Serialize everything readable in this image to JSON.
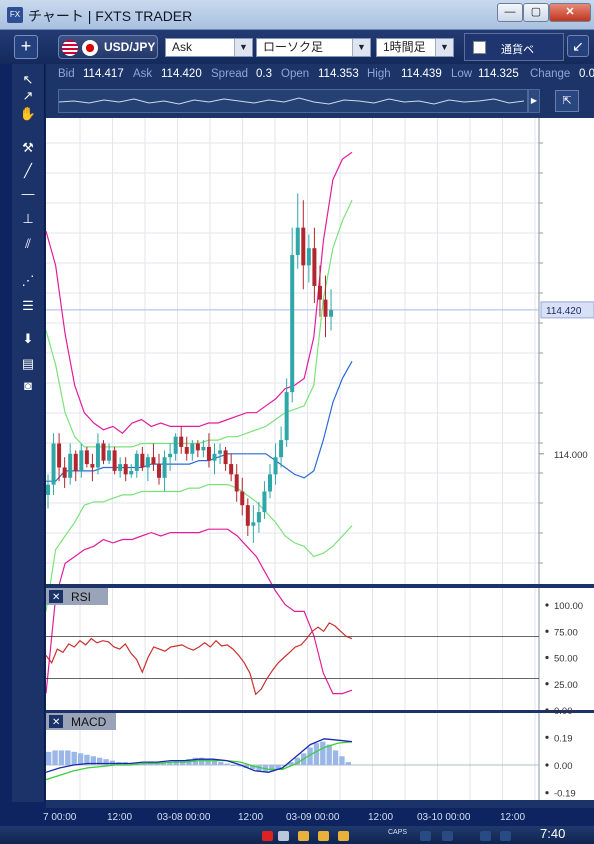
{
  "window": {
    "title": "チャート | FXTS TRADER",
    "min_label": "—",
    "max_label": "▢",
    "close_label": "✕"
  },
  "toolbar": {
    "add_label": "+",
    "pair": "USD/JPY",
    "price_type": "Ask",
    "chart_type": "ローソク足",
    "period": "1時間足",
    "currency_strength": "通貨ベ",
    "popout_label": "↙"
  },
  "quote": {
    "bid_label": "Bid",
    "bid": "114.417",
    "ask_label": "Ask",
    "ask": "114.420",
    "spread_label": "Spread",
    "spread": "0.3",
    "open_label": "Open",
    "open": "114.353",
    "high_label": "High",
    "high": "114.439",
    "low_label": "Low",
    "low": "114.325",
    "change_label": "Change",
    "change": "0.0"
  },
  "tools": [
    {
      "icon": "arrow-select-icon",
      "glyph": "↖"
    },
    {
      "icon": "crosshair-select-icon",
      "glyph": "↗"
    },
    {
      "icon": "hand-pan-icon",
      "glyph": "✋"
    },
    {
      "icon": "hammer-icon",
      "glyph": "⚒"
    },
    {
      "icon": "trendline-icon",
      "glyph": "╱"
    },
    {
      "icon": "horizontal-line-icon",
      "glyph": "—"
    },
    {
      "icon": "vertical-line-icon",
      "glyph": "⊥"
    },
    {
      "icon": "channel-icon",
      "glyph": "⫽"
    },
    {
      "icon": "fibonacci-fan-icon",
      "glyph": "⋰"
    },
    {
      "icon": "fibonacci-levels-icon",
      "glyph": "☰"
    },
    {
      "icon": "download-icon",
      "glyph": "⬇"
    },
    {
      "icon": "list-icon",
      "glyph": "▤"
    },
    {
      "icon": "camera-icon",
      "glyph": "◙"
    }
  ],
  "chart_data": [
    {
      "type": "candlestick",
      "title": "",
      "current_price_label": "114.420",
      "y_tick_labels": [
        "114.000"
      ],
      "x_tick_labels": [
        "7 00:00",
        "12:00",
        "03-08 00:00",
        "12:00",
        "03-09 00:00",
        "12:00",
        "03-10 00:00",
        "12:00"
      ],
      "ylim": [
        113.62,
        114.98
      ],
      "current_price": 114.42,
      "ohlc": [
        [
          113.88,
          113.94,
          113.84,
          113.91
        ],
        [
          113.91,
          114.06,
          113.88,
          114.03
        ],
        [
          114.03,
          114.06,
          113.92,
          113.96
        ],
        [
          113.96,
          113.99,
          113.9,
          113.93
        ],
        [
          113.93,
          114.03,
          113.91,
          114.0
        ],
        [
          114.0,
          114.01,
          113.92,
          113.95
        ],
        [
          113.95,
          114.03,
          113.93,
          114.01
        ],
        [
          114.01,
          114.02,
          113.96,
          113.97
        ],
        [
          113.97,
          114.0,
          113.92,
          113.96
        ],
        [
          113.96,
          114.06,
          113.94,
          114.03
        ],
        [
          114.03,
          114.04,
          113.97,
          113.98
        ],
        [
          113.98,
          114.03,
          113.97,
          114.01
        ],
        [
          114.01,
          114.02,
          113.94,
          113.95
        ],
        [
          113.95,
          113.99,
          113.93,
          113.97
        ],
        [
          113.97,
          113.99,
          113.92,
          113.94
        ],
        [
          113.94,
          113.97,
          113.93,
          113.95
        ],
        [
          113.95,
          114.01,
          113.93,
          114.0
        ],
        [
          114.0,
          114.02,
          113.95,
          113.96
        ],
        [
          113.96,
          114.0,
          113.92,
          113.99
        ],
        [
          113.99,
          114.03,
          113.95,
          113.97
        ],
        [
          113.97,
          114.0,
          113.91,
          113.93
        ],
        [
          113.93,
          114.01,
          113.89,
          113.99
        ],
        [
          113.99,
          114.03,
          113.95,
          114.0
        ],
        [
          114.0,
          114.06,
          113.98,
          114.05
        ],
        [
          114.05,
          114.08,
          114.0,
          114.02
        ],
        [
          114.02,
          114.05,
          113.98,
          114.0
        ],
        [
          114.0,
          114.04,
          113.98,
          114.03
        ],
        [
          114.03,
          114.04,
          113.99,
          114.01
        ],
        [
          114.01,
          114.04,
          113.99,
          114.02
        ],
        [
          114.02,
          114.06,
          113.96,
          113.98
        ],
        [
          113.98,
          114.03,
          113.94,
          114.0
        ],
        [
          114.0,
          114.03,
          113.97,
          114.01
        ],
        [
          114.01,
          114.02,
          113.95,
          113.97
        ],
        [
          113.97,
          114.0,
          113.92,
          113.94
        ],
        [
          113.94,
          113.97,
          113.86,
          113.89
        ],
        [
          113.89,
          113.93,
          113.82,
          113.85
        ],
        [
          113.85,
          113.87,
          113.76,
          113.79
        ],
        [
          113.79,
          113.85,
          113.74,
          113.8
        ],
        [
          113.8,
          113.86,
          113.77,
          113.83
        ],
        [
          113.83,
          113.92,
          113.81,
          113.89
        ],
        [
          113.89,
          113.97,
          113.87,
          113.94
        ],
        [
          113.94,
          114.03,
          113.91,
          113.99
        ],
        [
          113.99,
          114.08,
          113.96,
          114.04
        ],
        [
          114.04,
          114.22,
          114.02,
          114.18
        ],
        [
          114.18,
          114.66,
          114.15,
          114.58
        ],
        [
          114.58,
          114.76,
          114.54,
          114.66
        ],
        [
          114.66,
          114.74,
          114.48,
          114.55
        ],
        [
          114.55,
          114.64,
          114.5,
          114.6
        ],
        [
          114.6,
          114.66,
          114.44,
          114.49
        ],
        [
          114.49,
          114.55,
          114.4,
          114.45
        ],
        [
          114.45,
          114.52,
          114.34,
          114.4
        ],
        [
          114.4,
          114.48,
          114.36,
          114.42
        ]
      ],
      "bollinger_upper": [
        114.65,
        114.55,
        114.35,
        114.2,
        114.12,
        114.09,
        114.07,
        114.08,
        114.06,
        114.09,
        114.1,
        114.08,
        114.09,
        114.08,
        114.08,
        114.08,
        114.08,
        114.09,
        114.09,
        114.1,
        114.11,
        114.12,
        114.12,
        114.14,
        114.16,
        114.19,
        114.2,
        114.22,
        114.34,
        114.62,
        114.8,
        114.86,
        114.88
      ],
      "bollinger_2s_upper": [
        114.36,
        114.26,
        114.12,
        114.05,
        114.02,
        114.02,
        114.02,
        114.02,
        114.02,
        114.02,
        114.03,
        114.03,
        114.03,
        114.03,
        114.03,
        114.03,
        114.03,
        114.04,
        114.04,
        114.05,
        114.05,
        114.06,
        114.07,
        114.08,
        114.1,
        114.12,
        114.13,
        114.14,
        114.2,
        114.45,
        114.6,
        114.68,
        114.74
      ],
      "sma": [
        113.92,
        113.92,
        113.95,
        113.95,
        113.95,
        113.95,
        113.96,
        113.96,
        113.96,
        113.96,
        113.96,
        113.97,
        113.97,
        113.97,
        113.97,
        113.97,
        113.98,
        113.98,
        113.99,
        114.0,
        114.0,
        114.0,
        114.0,
        114.0,
        113.98,
        113.96,
        113.94,
        113.93,
        113.95,
        114.04,
        114.15,
        114.22,
        114.27
      ],
      "bollinger_2s_lower": [
        113.54,
        113.72,
        113.76,
        113.8,
        113.85,
        113.86,
        113.86,
        113.87,
        113.88,
        113.88,
        113.89,
        113.89,
        113.89,
        113.89,
        113.89,
        113.9,
        113.9,
        113.91,
        113.91,
        113.91,
        113.9,
        113.88,
        113.86,
        113.83,
        113.8,
        113.76,
        113.74,
        113.73,
        113.7,
        113.71,
        113.73,
        113.76,
        113.79
      ],
      "bollinger_lower": [
        113.3,
        113.58,
        113.68,
        113.7,
        113.72,
        113.73,
        113.75,
        113.74,
        113.75,
        113.75,
        113.76,
        113.77,
        113.76,
        113.77,
        113.77,
        113.77,
        113.77,
        113.78,
        113.78,
        113.78,
        113.76,
        113.73,
        113.7,
        113.65,
        113.6,
        113.56,
        113.54,
        113.54,
        113.47,
        113.36,
        113.3,
        113.3,
        113.31
      ]
    },
    {
      "type": "line",
      "title": "RSI",
      "close_label": "✕",
      "y_tick_labels": [
        "100.00",
        "75.00",
        "50.00",
        "25.00",
        "0.00"
      ],
      "ylim": [
        0,
        100
      ],
      "levels": [
        30,
        70
      ],
      "values": [
        52,
        45,
        58,
        55,
        63,
        60,
        66,
        62,
        68,
        64,
        66,
        65,
        60,
        58,
        63,
        54,
        48,
        36,
        50,
        60,
        58,
        56,
        60,
        61,
        62,
        59,
        57,
        60,
        64,
        60,
        66,
        61,
        62,
        58,
        52,
        45,
        35,
        15,
        20,
        30,
        38,
        45,
        50,
        55,
        60,
        62,
        68,
        75,
        79,
        75,
        83,
        80,
        75,
        70,
        68
      ]
    },
    {
      "type": "bar+line",
      "title": "MACD",
      "close_label": "✕",
      "y_tick_labels": [
        "0.19",
        "0.00",
        "-0.19"
      ],
      "ylim": [
        -0.24,
        0.24
      ],
      "histogram": [
        0.09,
        0.1,
        0.1,
        0.1,
        0.09,
        0.08,
        0.07,
        0.06,
        0.05,
        0.04,
        0.03,
        0.02,
        0.02,
        0.01,
        0.01,
        0.01,
        0.02,
        0.02,
        0.02,
        0.02,
        0.03,
        0.03,
        0.04,
        0.05,
        0.05,
        0.04,
        0.03,
        0.02,
        0.01,
        0.0,
        -0.01,
        -0.02,
        -0.03,
        -0.04,
        -0.05,
        -0.04,
        -0.03,
        -0.01,
        0.02,
        0.05,
        0.08,
        0.12,
        0.15,
        0.16,
        0.14,
        0.1,
        0.06,
        0.02
      ],
      "macd": [
        -0.05,
        -0.02,
        0.0,
        0.01,
        0.01,
        0.01,
        0.01,
        0.02,
        0.02,
        0.03,
        0.03,
        0.04,
        0.04,
        0.03,
        0.0,
        -0.04,
        -0.05,
        -0.02,
        0.06,
        0.14,
        0.18,
        0.17,
        0.16
      ],
      "signal": [
        -0.1,
        -0.07,
        -0.04,
        -0.02,
        -0.01,
        0.0,
        0.0,
        0.01,
        0.01,
        0.02,
        0.02,
        0.03,
        0.03,
        0.03,
        0.02,
        -0.01,
        -0.03,
        -0.03,
        0.01,
        0.07,
        0.12,
        0.15,
        0.16
      ]
    }
  ],
  "taskbar": {
    "time": "7:40",
    "caps": "CAPS"
  }
}
